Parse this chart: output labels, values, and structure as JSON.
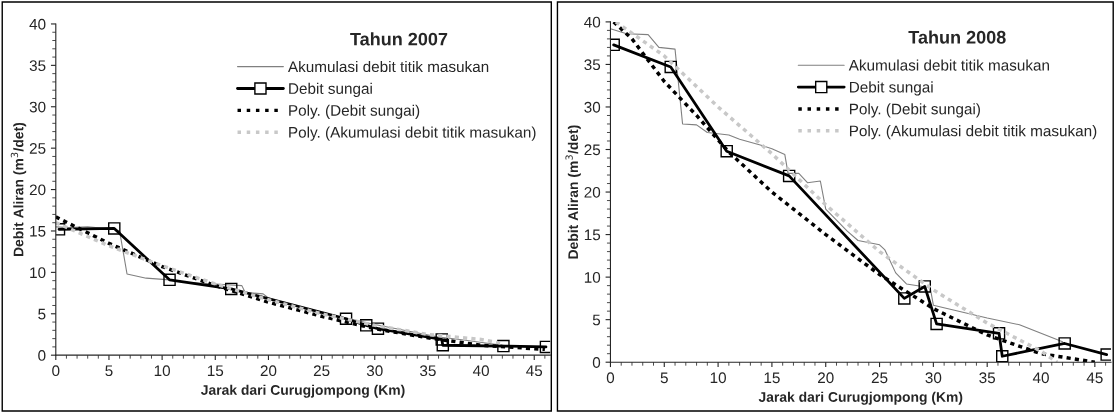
{
  "chart_data": [
    {
      "type": "line",
      "title": "Tahun 2007",
      "xlabel": "Jarak dari Curugjompong (Km)",
      "ylabel": "Debit Aliran (m$^{3}$/det)",
      "xlim": [
        0,
        46.5
      ],
      "ylim": [
        0,
        40
      ],
      "xticks": [
        0,
        5,
        10,
        15,
        20,
        25,
        30,
        35,
        40,
        45
      ],
      "yticks": [
        0,
        5,
        10,
        15,
        20,
        25,
        30,
        35,
        40
      ],
      "grid": false,
      "legend": "top right",
      "series": [
        {
          "name": "Akumulasi debit titik masukan",
          "color": "#808080",
          "line_style": "solid",
          "marker": "none",
          "x": [
            0,
            1.2,
            3,
            5.5,
            6,
            6.7,
            8.5,
            10.7,
            12,
            15,
            17.5,
            17.8,
            19.5,
            20,
            25,
            27.3,
            30,
            36,
            38,
            42,
            46
          ],
          "values": [
            15.5,
            15.4,
            15.5,
            15.2,
            15,
            9.8,
            9.3,
            9.1,
            8.8,
            8.6,
            8.4,
            7.6,
            7.4,
            6.9,
            5.0,
            4.5,
            3.7,
            2.2,
            1.9,
            1.2,
            0.9
          ]
        },
        {
          "name": "Debit sungai",
          "color": "#000000",
          "line_style": "solid",
          "marker": "square",
          "x": [
            0.3,
            5.5,
            10.7,
            16.5,
            27.3,
            29.2,
            30.3,
            36.3,
            36.4,
            42.1,
            46.1
          ],
          "values": [
            15.2,
            15.3,
            9.1,
            8.0,
            4.4,
            3.6,
            3.2,
            1.9,
            1.2,
            1.1,
            1.0
          ]
        },
        {
          "name": "Poly. (Debit sungai)",
          "color": "#000000",
          "line_style": "dotted",
          "marker": "none",
          "x": [
            0,
            5,
            10,
            15,
            20,
            25,
            30,
            35,
            40,
            46
          ],
          "values": [
            16.7,
            13.5,
            10.7,
            8.4,
            6.4,
            4.7,
            3.2,
            2.1,
            1.2,
            0.7
          ]
        },
        {
          "name": "Poly. (Akumulasi debit titik masukan)",
          "color": "#c8c8c8",
          "line_style": "dotted",
          "marker": "none",
          "x": [
            0,
            5,
            10,
            15,
            20,
            25,
            30,
            35,
            40,
            42
          ],
          "values": [
            16.0,
            13.2,
            10.8,
            8.6,
            6.7,
            5.0,
            3.6,
            2.5,
            1.9,
            1.4
          ]
        }
      ]
    },
    {
      "type": "line",
      "title": "Tahun 2008",
      "xlabel": "Jarak dari Curugjompong (Km)",
      "ylabel": "Debit Aliran (m$^{3}$/det)",
      "xlim": [
        0,
        46.5
      ],
      "ylim": [
        0,
        40
      ],
      "xticks": [
        0,
        5,
        10,
        15,
        20,
        25,
        30,
        35,
        40,
        45
      ],
      "yticks": [
        0,
        5,
        10,
        15,
        20,
        25,
        30,
        35,
        40
      ],
      "grid": false,
      "legend": "top right",
      "series": [
        {
          "name": "Akumulasi debit titik masukan",
          "color": "#808080",
          "line_style": "solid",
          "marker": "none",
          "x": [
            0,
            1.5,
            3.5,
            4.5,
            6,
            6.7,
            8,
            9,
            11,
            12,
            14,
            15,
            16.2,
            16.5,
            17.5,
            18.3,
            19.5,
            20,
            22,
            23,
            25,
            25.5,
            26.5,
            27.5,
            29,
            29.7,
            30,
            35,
            38,
            42
          ],
          "values": [
            39.2,
            38.6,
            38.5,
            37,
            36.8,
            28,
            27.9,
            27,
            26.7,
            26.2,
            25.5,
            25.1,
            24.4,
            22.2,
            22.2,
            21.1,
            21.3,
            18,
            15.4,
            14.3,
            13.8,
            13.2,
            10.5,
            9.2,
            8.9,
            8.8,
            6.7,
            5.2,
            4.4,
            2.4
          ]
        },
        {
          "name": "Debit sungai",
          "color": "#000000",
          "line_style": "solid",
          "marker": "square",
          "x": [
            0.3,
            5.6,
            10.8,
            16.6,
            27.3,
            29.2,
            30.3,
            36.1,
            36.4,
            42.2,
            46.1
          ],
          "values": [
            37.3,
            34.7,
            24.8,
            21.9,
            7.5,
            8.9,
            4.5,
            3.4,
            0.7,
            2.2,
            0.9
          ]
        },
        {
          "name": "Poly. (Debit sungai)",
          "color": "#000000",
          "line_style": "dotted",
          "marker": "none",
          "x": [
            0.3,
            2,
            5,
            8,
            11,
            15,
            20,
            25,
            30,
            35,
            40,
            45
          ],
          "values": [
            40,
            38,
            33,
            29,
            24.7,
            20,
            15,
            10.3,
            6.3,
            3.2,
            1.0,
            0
          ]
        },
        {
          "name": "Poly. (Akumulasi debit titik masukan)",
          "color": "#c8c8c8",
          "line_style": "dotted",
          "marker": "none",
          "x": [
            0.5,
            5,
            10,
            15,
            20,
            25,
            30,
            35,
            40,
            41.5
          ],
          "values": [
            40,
            36,
            30,
            24.5,
            18.5,
            13,
            8.5,
            4.6,
            1.3,
            0
          ]
        }
      ]
    }
  ]
}
